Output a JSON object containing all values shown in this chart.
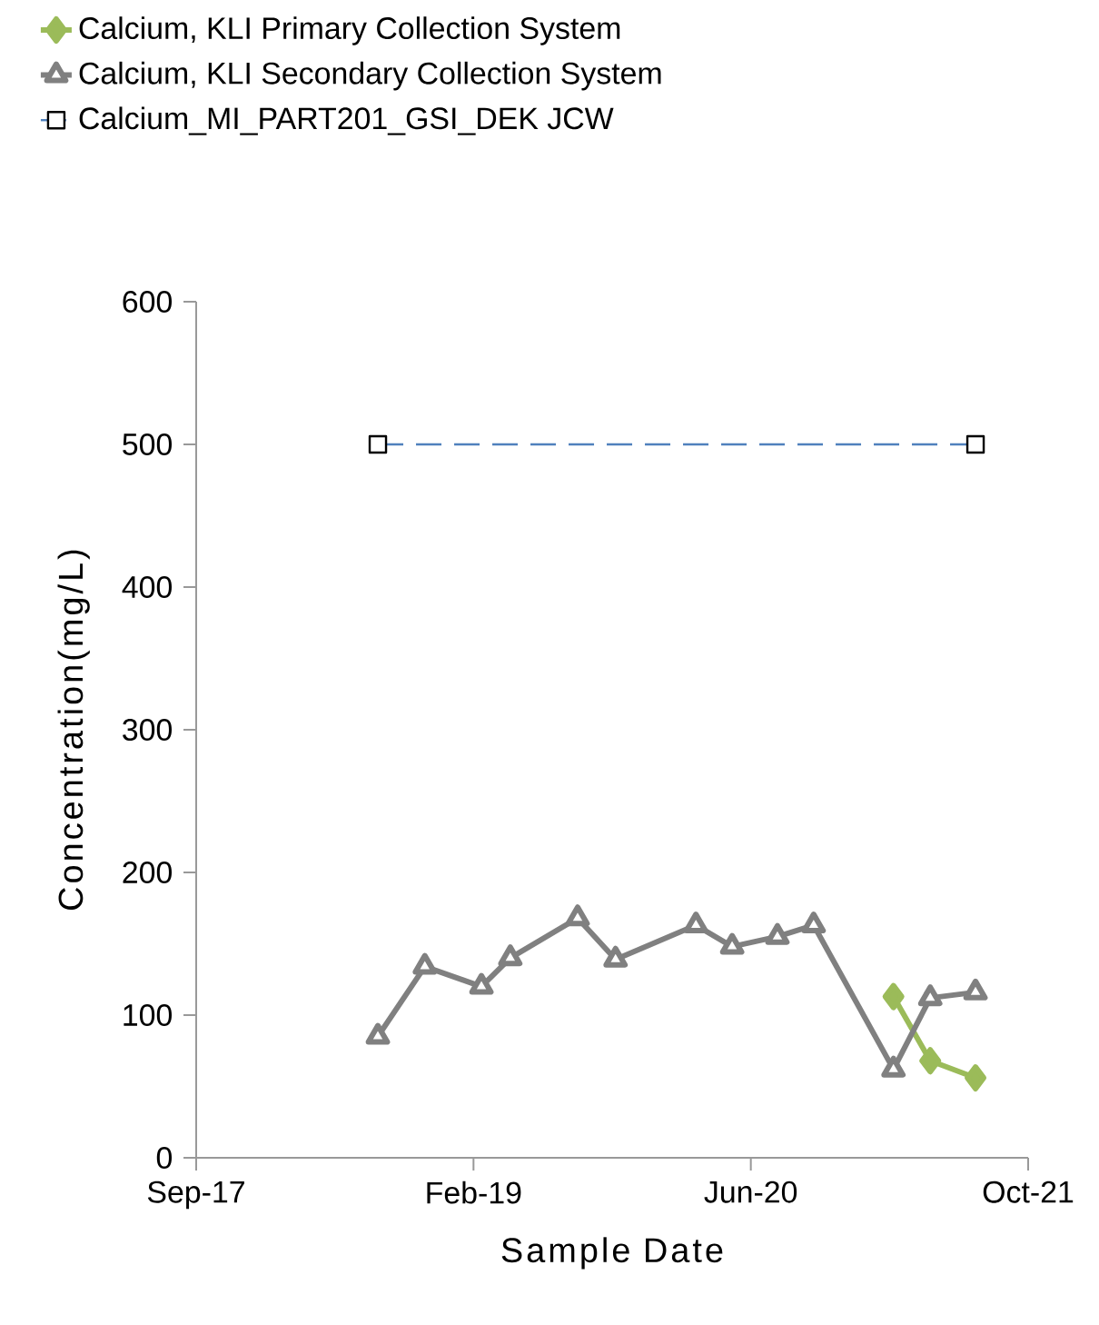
{
  "chart_data": {
    "type": "line",
    "xlabel": "Sample Date",
    "ylabel": "Concentration(mg/L)",
    "series": [
      {
        "name": "Calcium, KLI Primary Collection System",
        "color": "#9bbb59",
        "marker": "diamond",
        "line_style": "solid",
        "x": [
          "2021-02-13",
          "2021-04-19",
          "2021-07-08"
        ],
        "values": [
          113,
          68,
          56
        ]
      },
      {
        "name": "Calcium, KLI Secondary Collection System",
        "color": "#808080",
        "marker": "triangle",
        "line_style": "solid",
        "x": [
          "2018-08-17",
          "2018-11-08",
          "2019-02-16",
          "2019-04-08",
          "2019-08-05",
          "2019-10-11",
          "2020-03-01",
          "2020-05-04",
          "2020-07-23",
          "2020-09-25",
          "2021-02-13",
          "2021-04-19",
          "2021-07-08"
        ],
        "values": [
          85,
          134,
          120,
          140,
          168,
          139,
          163,
          148,
          155,
          163,
          62,
          112,
          116
        ]
      },
      {
        "name": "Calcium_MI_PART201_GSI_DEK JCW",
        "color": "#4f81bd",
        "marker": "square",
        "line_style": "dashed",
        "x": [
          "2018-08-17",
          "2021-07-08"
        ],
        "values": [
          500,
          500
        ]
      }
    ],
    "xlim": [
      "2017-09-30",
      "2021-10-09"
    ],
    "xticks": [
      {
        "value": "2017-09-30",
        "label": "Sep-17"
      },
      {
        "value": "2019-02-02",
        "label": "Feb-19"
      },
      {
        "value": "2020-06-06",
        "label": "Jun-20"
      },
      {
        "value": "2021-10-09",
        "label": "Oct-21"
      }
    ],
    "ylim": [
      0,
      600
    ],
    "yticks": [
      0,
      100,
      200,
      300,
      400,
      500,
      600
    ],
    "grid": false,
    "legend": "top"
  }
}
